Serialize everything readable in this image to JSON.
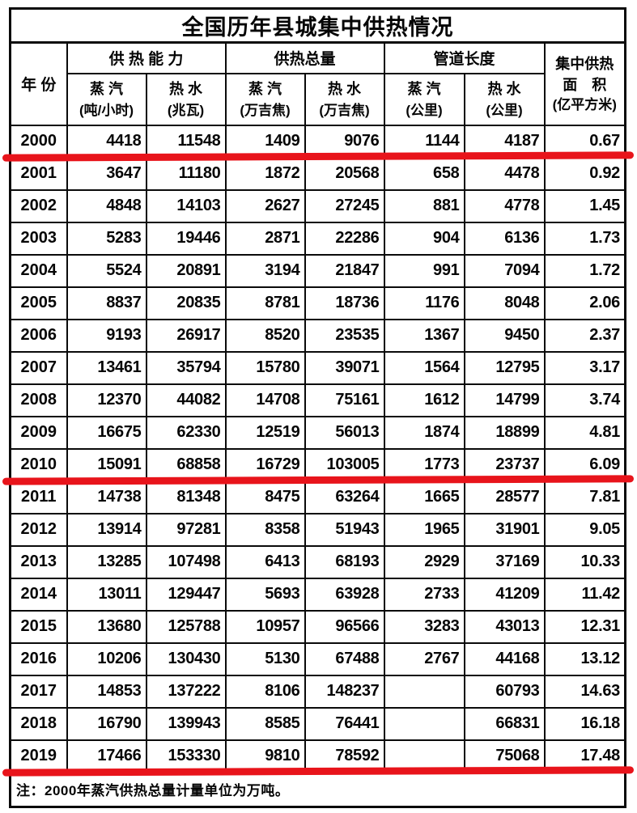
{
  "title": "全国历年县城集中供热情况",
  "table": {
    "year_header": "年 份",
    "groups": [
      {
        "label": "供 热 能 力",
        "subs": [
          {
            "name": "蒸 汽",
            "unit": "(吨/小时)"
          },
          {
            "name": "热 水",
            "unit": "(兆瓦)"
          }
        ]
      },
      {
        "label": "供热总量",
        "subs": [
          {
            "name": "蒸 汽",
            "unit": "(万吉焦)"
          },
          {
            "name": "热 水",
            "unit": "(万吉焦)"
          }
        ]
      },
      {
        "label": "管道长度",
        "subs": [
          {
            "name": "蒸 汽",
            "unit": "(公里)"
          },
          {
            "name": "热 水",
            "unit": "(公里)"
          }
        ]
      }
    ],
    "area_header": {
      "line1": "集中供热",
      "line2": "面　积",
      "line3": "(亿平方米)"
    },
    "rows": [
      {
        "year": "2000",
        "values": [
          "4418",
          "11548",
          "1409",
          "9076",
          "1144",
          "4187",
          "0.67"
        ]
      },
      {
        "year": "2001",
        "values": [
          "3647",
          "11180",
          "1872",
          "20568",
          "658",
          "4478",
          "0.92"
        ]
      },
      {
        "year": "2002",
        "values": [
          "4848",
          "14103",
          "2627",
          "27245",
          "881",
          "4778",
          "1.45"
        ]
      },
      {
        "year": "2003",
        "values": [
          "5283",
          "19446",
          "2871",
          "22286",
          "904",
          "6136",
          "1.73"
        ]
      },
      {
        "year": "2004",
        "values": [
          "5524",
          "20891",
          "3194",
          "21847",
          "991",
          "7094",
          "1.72"
        ]
      },
      {
        "year": "2005",
        "values": [
          "8837",
          "20835",
          "8781",
          "18736",
          "1176",
          "8048",
          "2.06"
        ]
      },
      {
        "year": "2006",
        "values": [
          "9193",
          "26917",
          "8520",
          "23535",
          "1367",
          "9450",
          "2.37"
        ]
      },
      {
        "year": "2007",
        "values": [
          "13461",
          "35794",
          "15780",
          "39071",
          "1564",
          "12795",
          "3.17"
        ]
      },
      {
        "year": "2008",
        "values": [
          "12370",
          "44082",
          "14708",
          "75161",
          "1612",
          "14799",
          "3.74"
        ]
      },
      {
        "year": "2009",
        "values": [
          "16675",
          "62330",
          "12519",
          "56013",
          "1874",
          "18899",
          "4.81"
        ]
      },
      {
        "year": "2010",
        "values": [
          "15091",
          "68858",
          "16729",
          "103005",
          "1773",
          "23737",
          "6.09"
        ]
      },
      {
        "year": "2011",
        "values": [
          "14738",
          "81348",
          "8475",
          "63264",
          "1665",
          "28577",
          "7.81"
        ]
      },
      {
        "year": "2012",
        "values": [
          "13914",
          "97281",
          "8358",
          "51943",
          "1965",
          "31901",
          "9.05"
        ]
      },
      {
        "year": "2013",
        "values": [
          "13285",
          "107498",
          "6413",
          "68193",
          "2929",
          "37169",
          "10.33"
        ]
      },
      {
        "year": "2014",
        "values": [
          "13011",
          "129447",
          "5693",
          "63928",
          "2733",
          "41209",
          "11.42"
        ]
      },
      {
        "year": "2015",
        "values": [
          "13680",
          "125788",
          "10957",
          "96566",
          "3283",
          "43013",
          "12.31"
        ]
      },
      {
        "year": "2016",
        "values": [
          "10206",
          "130430",
          "5130",
          "67488",
          "2767",
          "44168",
          "13.12"
        ]
      },
      {
        "year": "2017",
        "values": [
          "14853",
          "137222",
          "8106",
          "148237",
          "",
          "60793",
          "14.63"
        ]
      },
      {
        "year": "2018",
        "values": [
          "16790",
          "139943",
          "8585",
          "76441",
          "",
          "66831",
          "16.18"
        ]
      },
      {
        "year": "2019",
        "values": [
          "17466",
          "153330",
          "9810",
          "78592",
          "",
          "75068",
          "17.48"
        ]
      }
    ],
    "note": "注：2000年蒸汽供热总量计量单位为万吨。"
  },
  "annotations": {
    "color": "#e8141b",
    "lines": [
      {
        "after_year": "2000"
      },
      {
        "after_year": "2010"
      },
      {
        "after_year": "2019"
      }
    ]
  }
}
